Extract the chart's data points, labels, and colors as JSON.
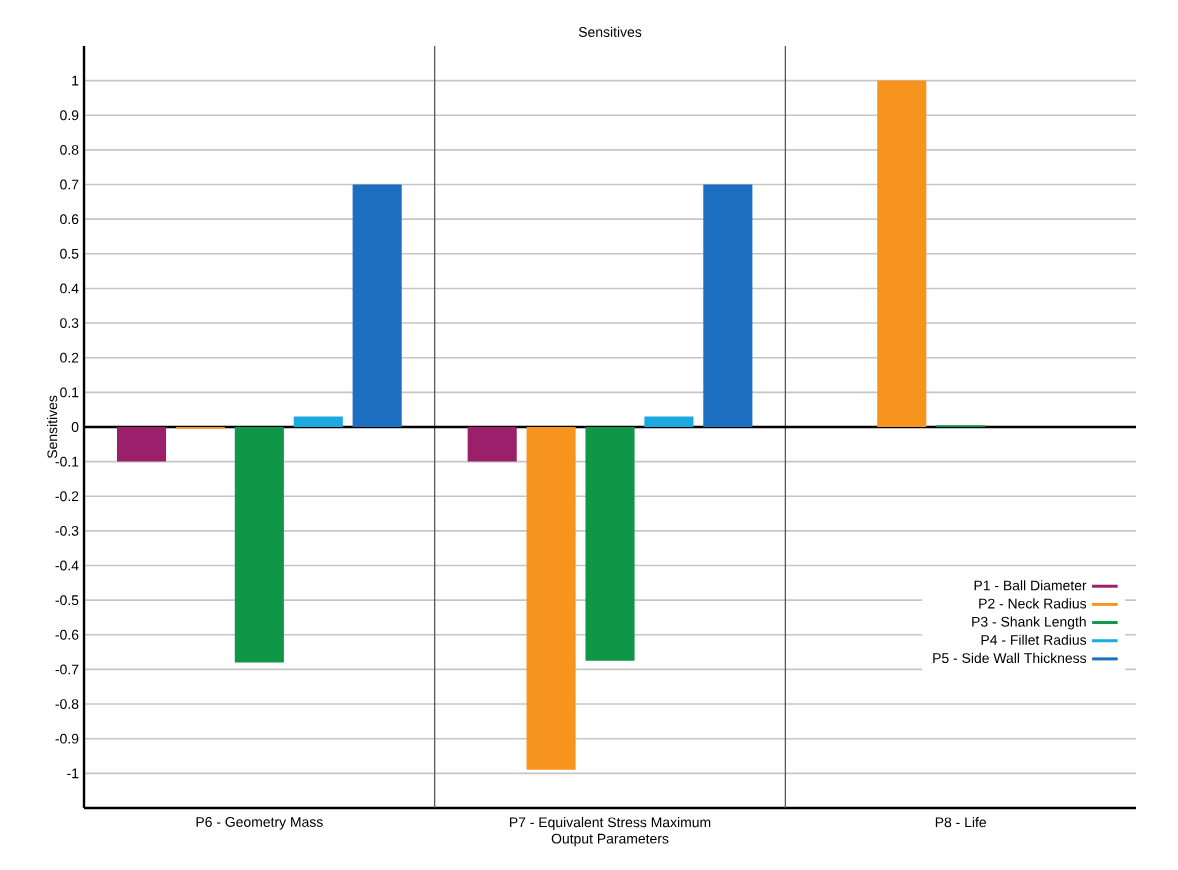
{
  "chart_data": {
    "type": "bar",
    "title": "Sensitives",
    "xlabel": "Output Parameters",
    "ylabel": "Sensitives",
    "categories": [
      "P6 - Geometry Mass",
      "P7 - Equivalent  Stress  Maximum",
      "P8 - Life"
    ],
    "series": [
      {
        "name": "P1 - Ball Diameter",
        "color": "#9b1f6a",
        "values": [
          -0.1,
          -0.1,
          0
        ]
      },
      {
        "name": "P2 - Neck Radius",
        "color": "#f7941d",
        "values": [
          -0.005,
          -0.99,
          1.0
        ]
      },
      {
        "name": "P3 - Shank Length",
        "color": "#0f9646",
        "values": [
          -0.68,
          -0.675,
          0.005
        ]
      },
      {
        "name": "P4 - Fillet Radius",
        "color": "#1ba9e1",
        "values": [
          0.03,
          0.03,
          0
        ]
      },
      {
        "name": "P5 - Side Wall Thickness",
        "color": "#1c6fc0",
        "values": [
          0.7,
          0.7,
          0
        ]
      }
    ],
    "ylim": [
      -1.1,
      1.1
    ],
    "yticks": [
      -1,
      -0.9,
      -0.8,
      -0.7,
      -0.6,
      -0.5,
      -0.4,
      -0.3,
      -0.2,
      -0.1,
      0,
      0.1,
      0.2,
      0.3,
      0.4,
      0.5,
      0.6,
      0.7,
      0.8,
      0.9,
      1
    ],
    "grid": "y",
    "legend": "bottom right"
  }
}
